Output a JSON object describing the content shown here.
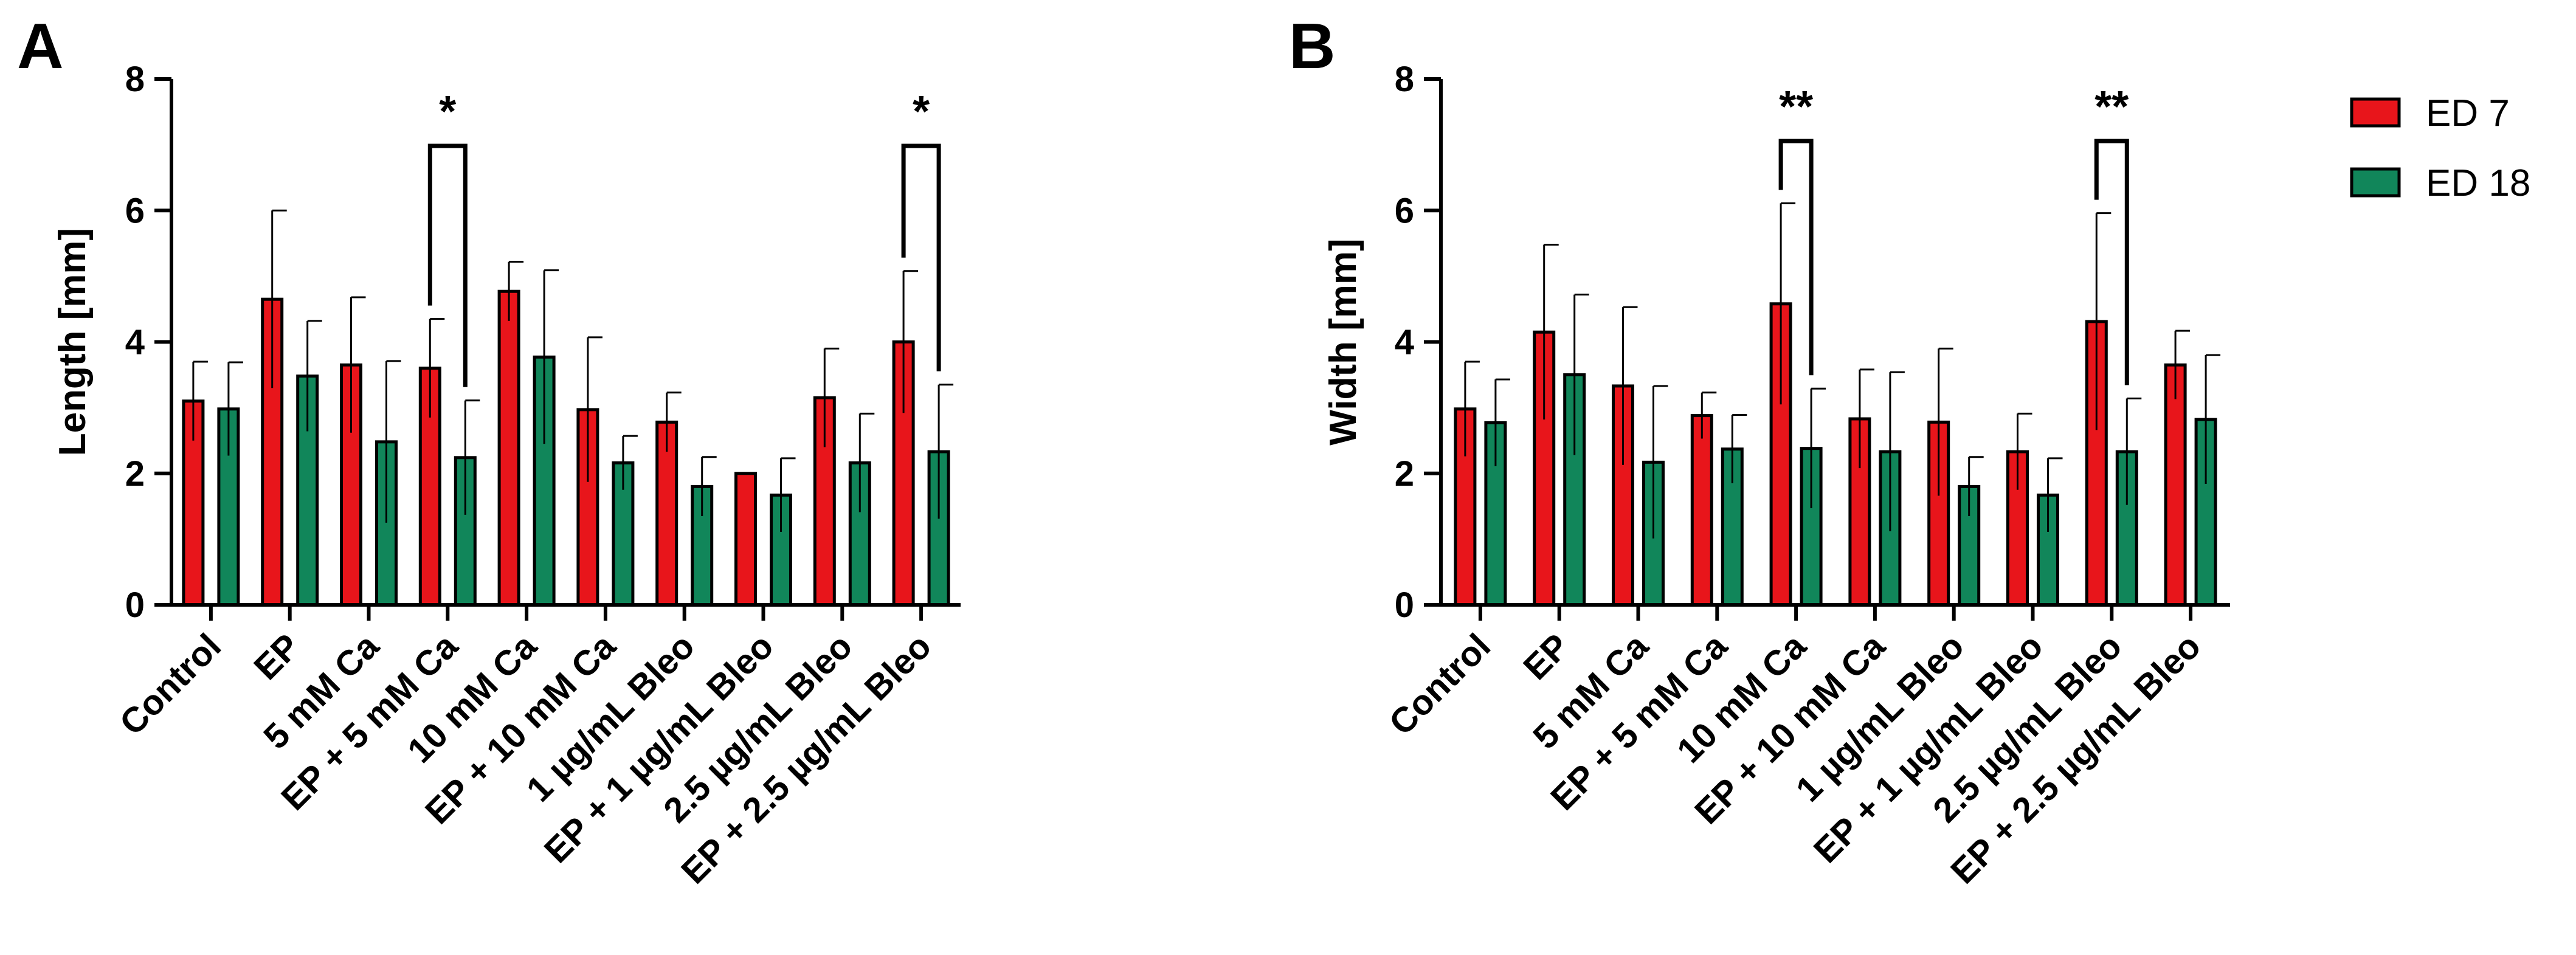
{
  "legend": [
    {
      "name": "ED 7",
      "color": "#e8151b"
    },
    {
      "name": "ED 18",
      "color": "#11865a"
    }
  ],
  "chart_data": [
    {
      "type": "bar",
      "panel": "A",
      "ylabel": "Length [mm]",
      "ylim": [
        0,
        8
      ],
      "yticks": [
        "0",
        "2",
        "4",
        "6",
        "8"
      ],
      "categories": [
        "Control",
        "EP",
        "5 mM Ca",
        "EP + 5 mM Ca",
        "10 mM Ca",
        "EP + 10 mM Ca",
        "1 µg/mL Bleo",
        "EP + 1 µg/mL Bleo",
        "2.5 µg/mL Bleo",
        "EP + 2.5 µg/mL Bleo"
      ],
      "series": [
        {
          "name": "ED 7",
          "values": [
            3.1,
            4.65,
            3.65,
            3.6,
            4.77,
            2.97,
            2.78,
            2.0,
            3.15,
            4.0
          ],
          "sd": [
            0.6,
            1.35,
            1.03,
            0.75,
            0.45,
            1.1,
            0.45,
            0.0,
            0.75,
            1.08
          ]
        },
        {
          "name": "ED 18",
          "values": [
            2.98,
            3.48,
            2.48,
            2.24,
            3.77,
            2.16,
            1.8,
            1.67,
            2.16,
            2.33
          ],
          "sd": [
            0.71,
            0.84,
            1.23,
            0.87,
            1.32,
            0.41,
            0.45,
            0.56,
            0.75,
            1.02
          ]
        }
      ],
      "significance": [
        {
          "category_index": 3,
          "label": "*"
        },
        {
          "category_index": 9,
          "label": "*"
        }
      ]
    },
    {
      "type": "bar",
      "panel": "B",
      "ylabel": "Width [mm]",
      "ylim": [
        0,
        8
      ],
      "yticks": [
        "0",
        "2",
        "4",
        "6",
        "8"
      ],
      "categories": [
        "Control",
        "EP",
        "5 mM Ca",
        "EP + 5 mM Ca",
        "10 mM Ca",
        "EP + 10 mM Ca",
        "1 µg/mL Bleo",
        "EP + 1 µg/mL Bleo",
        "2.5 µg/mL Bleo",
        "EP + 2.5 µg/mL Bleo"
      ],
      "series": [
        {
          "name": "ED 7",
          "values": [
            2.98,
            4.15,
            3.33,
            2.88,
            4.58,
            2.83,
            2.78,
            2.33,
            4.31,
            3.65
          ],
          "sd": [
            0.72,
            1.33,
            1.2,
            0.35,
            1.53,
            0.75,
            1.12,
            0.58,
            1.65,
            0.52
          ]
        },
        {
          "name": "ED 18",
          "values": [
            2.77,
            3.5,
            2.17,
            2.37,
            2.38,
            2.33,
            1.8,
            1.67,
            2.33,
            2.82
          ],
          "sd": [
            0.66,
            1.22,
            1.16,
            0.52,
            0.91,
            1.21,
            0.45,
            0.56,
            0.81,
            0.98
          ]
        }
      ],
      "significance": [
        {
          "category_index": 4,
          "label": "**"
        },
        {
          "category_index": 8,
          "label": "**"
        }
      ]
    }
  ]
}
